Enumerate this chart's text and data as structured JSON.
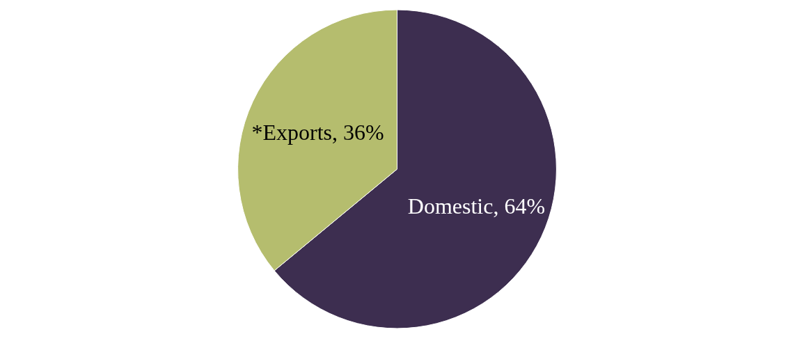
{
  "chart_data": {
    "type": "pie",
    "categories": [
      "Domestic",
      "*Exports"
    ],
    "values": [
      64,
      36
    ],
    "colors": [
      "#3d2e50",
      "#b5bd6e"
    ],
    "value_labels": [
      "64%",
      "36%"
    ]
  }
}
